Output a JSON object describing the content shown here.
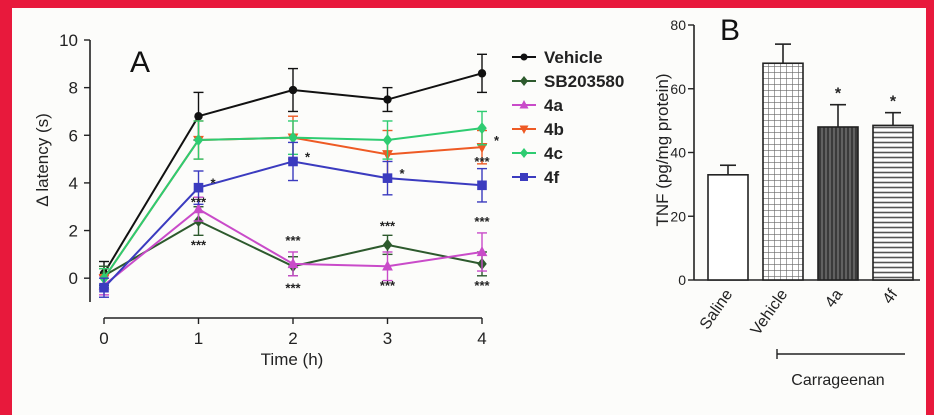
{
  "colors": {
    "border": "#e8193c",
    "vehicle": "#111111",
    "sb203580": "#2d5a2d",
    "4a": "#c94bc9",
    "4b": "#ee5a24",
    "4c": "#2ecc71",
    "4f": "#3b3bbf"
  },
  "chart_data": [
    {
      "type": "line",
      "panel_label": "A",
      "xlabel": "Time (h)",
      "ylabel": "Δ latency (s)",
      "xlim": [
        0,
        4
      ],
      "ylim": [
        -1,
        10
      ],
      "x": [
        0,
        1,
        2,
        3,
        4
      ],
      "x_ticks": [
        "0",
        "1",
        "2",
        "3",
        "4"
      ],
      "y_ticks": [
        "0",
        "2",
        "4",
        "6",
        "8",
        "10"
      ],
      "legend_position": "top-right",
      "series": [
        {
          "name": "Vehicle",
          "values": [
            0.2,
            6.8,
            7.9,
            7.5,
            8.6
          ],
          "errors": [
            0.5,
            1.0,
            0.9,
            0.5,
            0.8
          ],
          "marker": "circle"
        },
        {
          "name": "SB203580",
          "values": [
            0.1,
            2.4,
            0.5,
            1.4,
            0.6
          ],
          "errors": [
            0.4,
            0.6,
            0.4,
            0.4,
            0.5
          ],
          "marker": "diamond"
        },
        {
          "name": "4a",
          "values": [
            -0.3,
            2.9,
            0.6,
            0.5,
            1.1
          ],
          "errors": [
            0.4,
            0.5,
            0.5,
            0.6,
            0.8
          ],
          "marker": "triangle-up"
        },
        {
          "name": "4b",
          "values": [
            0.0,
            5.8,
            5.9,
            5.2,
            5.5
          ],
          "errors": [
            0.4,
            0.8,
            0.9,
            1.0,
            0.7
          ],
          "marker": "triangle-down"
        },
        {
          "name": "4c",
          "values": [
            0.0,
            5.8,
            5.9,
            5.8,
            6.3
          ],
          "errors": [
            0.4,
            0.8,
            0.7,
            0.8,
            0.7
          ],
          "marker": "diamond"
        },
        {
          "name": "4f",
          "values": [
            -0.4,
            3.8,
            4.9,
            4.2,
            3.9
          ],
          "errors": [
            0.4,
            0.7,
            0.8,
            0.7,
            0.7
          ],
          "marker": "square"
        }
      ],
      "annotations": [
        {
          "text": "***",
          "x": 1,
          "y": 1.2
        },
        {
          "text": "***",
          "x": 1,
          "y": 3.0
        },
        {
          "text": "*",
          "x": 1,
          "y": 3.8
        },
        {
          "text": "***",
          "x": 2,
          "y": 1.4
        },
        {
          "text": "***",
          "x": 2,
          "y": -0.6
        },
        {
          "text": "*",
          "x": 2,
          "y": 4.9
        },
        {
          "text": "***",
          "x": 3,
          "y": 2.0
        },
        {
          "text": "***",
          "x": 3,
          "y": -0.5
        },
        {
          "text": "*",
          "x": 3,
          "y": 4.2
        },
        {
          "text": "*",
          "x": 4,
          "y": 5.6
        },
        {
          "text": "***",
          "x": 4,
          "y": 4.7
        },
        {
          "text": "***",
          "x": 4,
          "y": 2.2
        },
        {
          "text": "***",
          "x": 4,
          "y": -0.5
        }
      ]
    },
    {
      "type": "bar",
      "panel_label": "B",
      "ylabel": "TNF (pg/mg protein)",
      "ylim": [
        0,
        80
      ],
      "y_ticks": [
        "0",
        "20",
        "40",
        "60",
        "80"
      ],
      "categories": [
        "Saline",
        "Vehicle",
        "4a",
        "4f"
      ],
      "values": [
        33,
        68,
        48,
        48.5
      ],
      "errors": [
        3,
        6,
        7,
        4
      ],
      "fills": [
        "white",
        "grid",
        "dark-vertical",
        "horizontal"
      ],
      "significance": [
        "",
        "",
        "*",
        "*"
      ],
      "group_label": "Carrageenan"
    }
  ]
}
